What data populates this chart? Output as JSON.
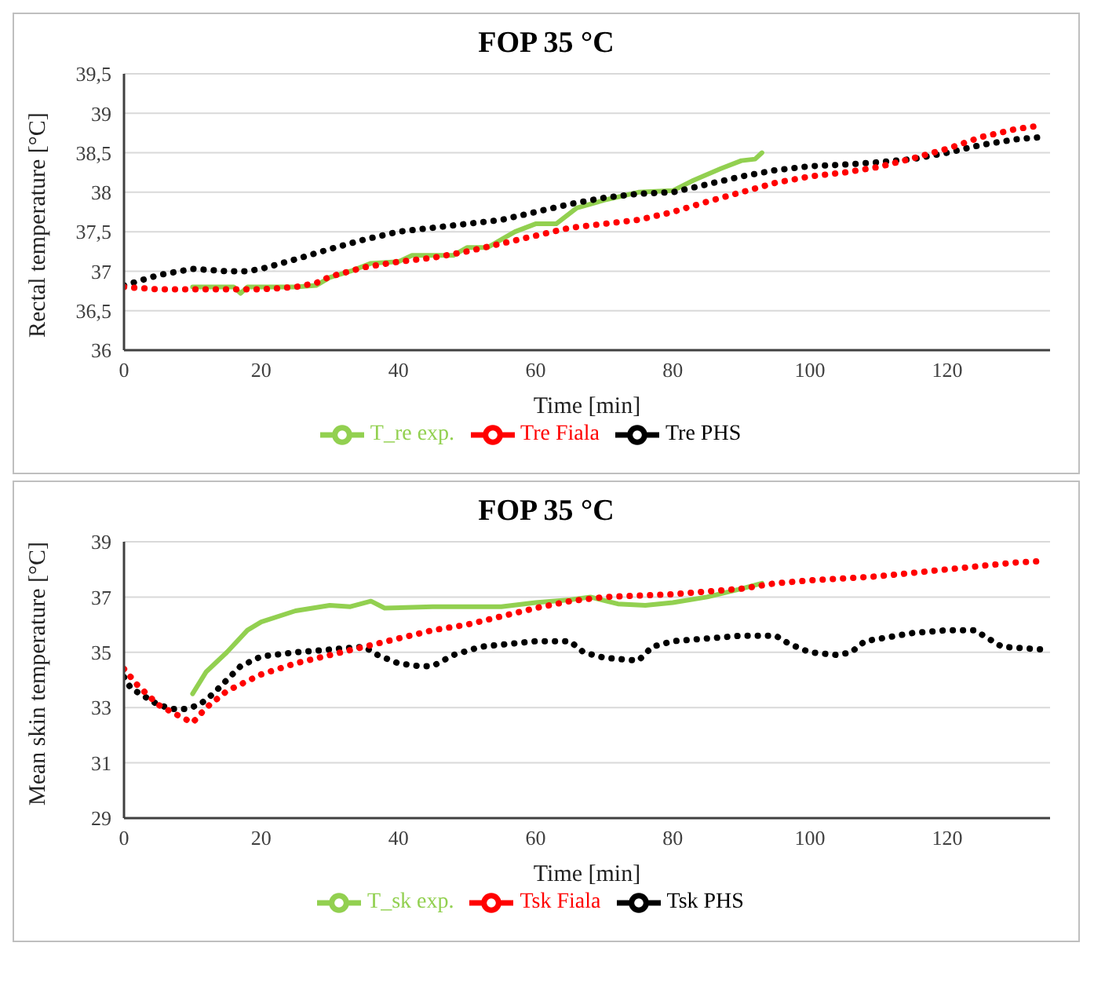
{
  "chart_data": [
    {
      "type": "line",
      "title": "FOP 35 °C",
      "xlabel": "Time [min]",
      "ylabel": "Rectal temperature [°C]",
      "xlim": [
        0,
        135
      ],
      "xticks": [
        0,
        20,
        40,
        60,
        80,
        100,
        120
      ],
      "ylim": [
        36,
        39.5
      ],
      "yticks": [
        {
          "value": 36,
          "label": "36"
        },
        {
          "value": 36.5,
          "label": "36,5"
        },
        {
          "value": 37,
          "label": "37"
        },
        {
          "value": 37.5,
          "label": "37,5"
        },
        {
          "value": 38,
          "label": "38"
        },
        {
          "value": 38.5,
          "label": "38,5"
        },
        {
          "value": 39,
          "label": "39"
        },
        {
          "value": 39.5,
          "label": "39,5"
        }
      ],
      "grid": "y",
      "legend": "bottom",
      "marker": "none",
      "series": [
        {
          "name": "T_re exp.",
          "color": "#92d050",
          "line_style": "solid",
          "x": [
            10,
            16,
            17,
            18,
            25,
            28,
            30,
            33,
            36,
            40,
            42,
            48,
            50,
            53,
            55,
            57,
            60,
            63,
            66,
            70,
            75,
            80,
            83,
            87,
            90,
            92,
            93
          ],
          "values": [
            36.8,
            36.8,
            36.72,
            36.8,
            36.8,
            36.82,
            36.92,
            37.0,
            37.1,
            37.12,
            37.2,
            37.2,
            37.3,
            37.3,
            37.4,
            37.5,
            37.6,
            37.6,
            37.8,
            37.9,
            38.0,
            38.02,
            38.15,
            38.3,
            38.4,
            38.42,
            38.5
          ]
        },
        {
          "name": "Tre PHS",
          "color": "#000000",
          "line_style": "dotted",
          "x": [
            0,
            5,
            10,
            15,
            18,
            20,
            25,
            30,
            35,
            40,
            45,
            50,
            55,
            60,
            65,
            70,
            75,
            80,
            85,
            90,
            95,
            100,
            105,
            110,
            115,
            120,
            125,
            130,
            134
          ],
          "values": [
            36.82,
            36.95,
            37.03,
            37.0,
            37.0,
            37.03,
            37.15,
            37.28,
            37.4,
            37.5,
            37.55,
            37.6,
            37.65,
            37.75,
            37.85,
            37.93,
            37.98,
            38.0,
            38.1,
            38.2,
            38.28,
            38.33,
            38.35,
            38.38,
            38.42,
            38.5,
            38.6,
            38.67,
            38.7
          ]
        },
        {
          "name": "Tre Fiala",
          "color": "#ff0000",
          "line_style": "dotted",
          "x": [
            0,
            5,
            10,
            15,
            20,
            25,
            28,
            30,
            35,
            40,
            45,
            50,
            55,
            60,
            65,
            70,
            75,
            80,
            85,
            90,
            95,
            100,
            105,
            110,
            115,
            120,
            125,
            130,
            134
          ],
          "values": [
            36.8,
            36.77,
            36.77,
            36.77,
            36.77,
            36.8,
            36.85,
            36.93,
            37.05,
            37.12,
            37.17,
            37.25,
            37.35,
            37.45,
            37.55,
            37.6,
            37.65,
            37.75,
            37.88,
            38.0,
            38.12,
            38.2,
            38.25,
            38.32,
            38.43,
            38.55,
            38.7,
            38.8,
            38.85
          ]
        }
      ]
    },
    {
      "type": "line",
      "title": "FOP 35 °C",
      "xlabel": "Time [min]",
      "ylabel": "Mean skin temperature [°C]",
      "xlim": [
        0,
        135
      ],
      "xticks": [
        0,
        20,
        40,
        60,
        80,
        100,
        120
      ],
      "ylim": [
        29,
        39
      ],
      "yticks": [
        29,
        31,
        33,
        35,
        37,
        39
      ],
      "grid": "y",
      "legend": "bottom",
      "marker": "none",
      "series": [
        {
          "name": "T_sk exp.",
          "color": "#92d050",
          "line_style": "solid",
          "x": [
            10,
            12,
            15,
            18,
            20,
            25,
            30,
            33,
            36,
            38,
            45,
            55,
            60,
            65,
            68,
            72,
            76,
            80,
            85,
            90,
            93
          ],
          "values": [
            33.5,
            34.3,
            35.0,
            35.8,
            36.1,
            36.5,
            36.7,
            36.65,
            36.85,
            36.6,
            36.65,
            36.65,
            36.8,
            36.9,
            37.0,
            36.75,
            36.7,
            36.8,
            37.0,
            37.3,
            37.5
          ]
        },
        {
          "name": "Tsk PHS",
          "color": "#000000",
          "line_style": "dotted",
          "x": [
            0,
            1,
            3,
            5,
            7,
            9,
            11,
            13,
            15,
            17,
            20,
            25,
            30,
            35,
            37,
            40,
            43,
            45,
            48,
            52,
            60,
            65,
            67,
            70,
            75,
            77,
            80,
            90,
            95,
            97,
            100,
            104,
            106,
            108,
            115,
            120,
            124,
            126,
            128,
            134
          ],
          "values": [
            34.1,
            33.7,
            33.4,
            33.1,
            32.95,
            32.95,
            33.1,
            33.5,
            34.0,
            34.5,
            34.85,
            35.0,
            35.1,
            35.2,
            34.9,
            34.6,
            34.5,
            34.5,
            34.9,
            35.2,
            35.4,
            35.4,
            35.0,
            34.8,
            34.7,
            35.2,
            35.4,
            35.6,
            35.6,
            35.3,
            35.0,
            34.9,
            35.0,
            35.4,
            35.7,
            35.8,
            35.8,
            35.5,
            35.2,
            35.1
          ]
        },
        {
          "name": "Tsk Fiala",
          "color": "#ff0000",
          "line_style": "dotted",
          "x": [
            0,
            2,
            5,
            8,
            10,
            12,
            15,
            20,
            25,
            30,
            35,
            40,
            45,
            50,
            55,
            60,
            65,
            70,
            80,
            90,
            95,
            100,
            110,
            120,
            130,
            134
          ],
          "values": [
            34.4,
            33.8,
            33.1,
            32.7,
            32.45,
            33.0,
            33.6,
            34.2,
            34.6,
            34.9,
            35.2,
            35.5,
            35.8,
            36.0,
            36.3,
            36.6,
            36.85,
            37.0,
            37.1,
            37.3,
            37.5,
            37.6,
            37.75,
            38.0,
            38.25,
            38.3
          ]
        }
      ]
    }
  ]
}
